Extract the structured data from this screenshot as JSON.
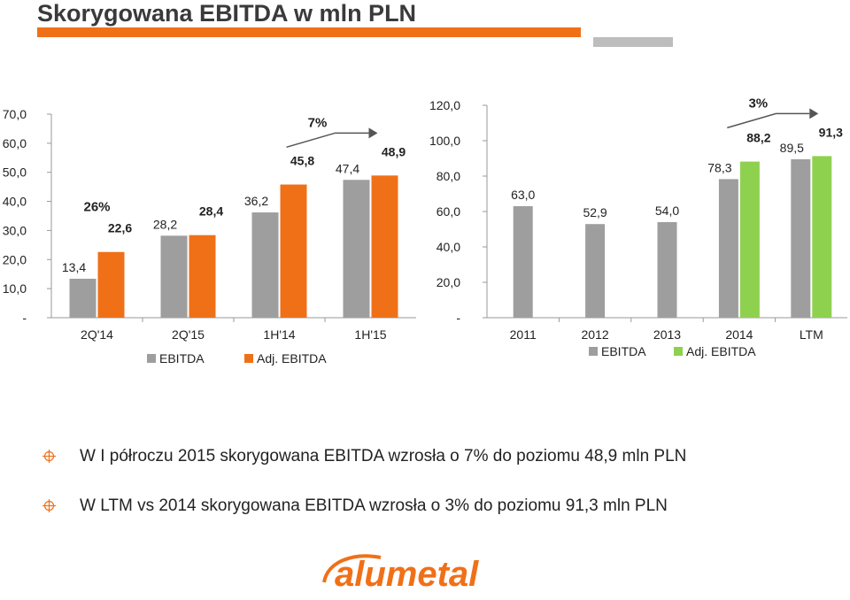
{
  "page": {
    "title": "Skorygowana EBITDA w mln PLN",
    "bullets": [
      "W I półroczu 2015 skorygowana EBITDA wzrosła o 7% do poziomu 48,9 mln PLN",
      "W LTM vs 2014 skorygowana EBITDA wzrosła o 3% do poziomu 91,3 mln PLN"
    ],
    "logo": {
      "text": "alumetal",
      "color": "#f07018",
      "secondary_color": "#9e9e9e"
    },
    "colors": {
      "orange": "#f07018",
      "gray": "#9e9e9e",
      "green": "#8ed14f",
      "accent_bar_gray": "#bdbdbd"
    }
  },
  "chart_data": [
    {
      "type": "bar",
      "categories": [
        "2Q'14",
        "2Q'15",
        "1H'14",
        "1H'15"
      ],
      "series": [
        {
          "name": "EBITDA",
          "color": "#9e9e9e",
          "values": [
            13.4,
            28.2,
            36.2,
            47.4
          ],
          "labels": [
            "13,4",
            "28,2",
            "36,2",
            "47,4"
          ]
        },
        {
          "name": "Adj. EBITDA",
          "color": "#f07018",
          "values": [
            22.6,
            28.4,
            45.8,
            48.9
          ],
          "labels": [
            "22,6",
            "28,4",
            "45,8",
            "48,9"
          ]
        }
      ],
      "ylim": [
        0,
        70
      ],
      "yticks": [
        "-",
        "10,0",
        "20,0",
        "30,0",
        "40,0",
        "50,0",
        "60,0",
        "70,0"
      ],
      "grid": false,
      "legend": "bottom",
      "annotations": [
        {
          "text": "26%",
          "category": "2Q'14"
        },
        {
          "text": "7%",
          "category": "1H'15",
          "arrow": true
        }
      ]
    },
    {
      "type": "bar",
      "categories": [
        "2011",
        "2012",
        "2013",
        "2014",
        "LTM"
      ],
      "series": [
        {
          "name": "EBITDA",
          "color": "#9e9e9e",
          "values": [
            63.0,
            52.9,
            54.0,
            78.3,
            89.5
          ],
          "labels": [
            "63,0",
            "52,9",
            "54,0",
            "78,3",
            "89,5"
          ]
        },
        {
          "name": "Adj. EBITDA",
          "color": "#8ed14f",
          "values": [
            null,
            null,
            null,
            88.2,
            91.3
          ],
          "labels": [
            "",
            "",
            "",
            "88,2",
            "91,3"
          ]
        }
      ],
      "ylim": [
        0,
        120
      ],
      "yticks": [
        "-",
        "20,0",
        "40,0",
        "60,0",
        "80,0",
        "100,0",
        "120,0"
      ],
      "grid": false,
      "legend": "bottom",
      "annotations": [
        {
          "text": "3%",
          "category": "LTM",
          "arrow": true
        }
      ]
    }
  ]
}
